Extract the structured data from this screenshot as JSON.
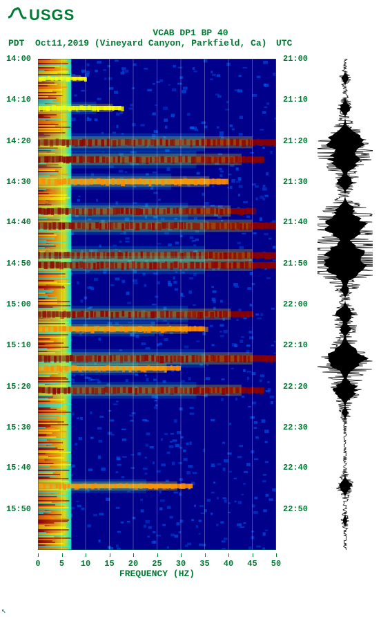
{
  "logo": {
    "org": "USGS",
    "color": "#007a33"
  },
  "header": {
    "title1": "VCAB DP1 BP 40",
    "tz_left": "PDT",
    "date_location": "Oct11,2019 (Vineyard Canyon, Parkfield, Ca)",
    "tz_right": "UTC"
  },
  "spectrogram": {
    "type": "heatmap",
    "x_axis": {
      "label": "FREQUENCY (HZ)",
      "min": 0,
      "max": 50,
      "ticks": [
        0,
        5,
        10,
        15,
        20,
        25,
        30,
        35,
        40,
        45,
        50
      ],
      "label_fontsize": 13,
      "tick_fontsize": 12
    },
    "y_axis_left": {
      "label_tz": "PDT",
      "ticks": [
        "14:00",
        "14:10",
        "14:20",
        "14:30",
        "14:40",
        "14:50",
        "15:00",
        "15:10",
        "15:20",
        "15:30",
        "15:40",
        "15:50"
      ],
      "tick_positions_pct": [
        0,
        8.3,
        16.7,
        25,
        33.3,
        41.7,
        50,
        58.3,
        66.7,
        75,
        83.3,
        91.7
      ]
    },
    "y_axis_right": {
      "label_tz": "UTC",
      "ticks": [
        "21:00",
        "21:10",
        "21:20",
        "21:30",
        "21:40",
        "21:50",
        "22:00",
        "22:10",
        "22:20",
        "22:30",
        "22:40",
        "22:50"
      ],
      "tick_positions_pct": [
        0,
        8.3,
        16.7,
        25,
        33.3,
        41.7,
        50,
        58.3,
        66.7,
        75,
        83.3,
        91.7
      ]
    },
    "colormap": {
      "low": "#00008b",
      "mid_low": "#0066ff",
      "mid": "#00ffff",
      "mid_high": "#ffff00",
      "high": "#ff8c00",
      "peak": "#8b0000"
    },
    "grid_color": "#ffffff",
    "background_color": "#00008b",
    "event_bands": [
      {
        "t_pct": 4,
        "intensity": 0.3,
        "width_pct": 20
      },
      {
        "t_pct": 10,
        "intensity": 0.5,
        "width_pct": 35
      },
      {
        "t_pct": 17,
        "intensity": 0.95,
        "width_pct": 100
      },
      {
        "t_pct": 20.5,
        "intensity": 0.9,
        "width_pct": 95
      },
      {
        "t_pct": 25,
        "intensity": 0.8,
        "width_pct": 80
      },
      {
        "t_pct": 31,
        "intensity": 0.85,
        "width_pct": 90
      },
      {
        "t_pct": 34,
        "intensity": 0.98,
        "width_pct": 100
      },
      {
        "t_pct": 40,
        "intensity": 0.98,
        "width_pct": 100
      },
      {
        "t_pct": 42,
        "intensity": 0.95,
        "width_pct": 100
      },
      {
        "t_pct": 52,
        "intensity": 0.85,
        "width_pct": 90
      },
      {
        "t_pct": 55,
        "intensity": 0.7,
        "width_pct": 70
      },
      {
        "t_pct": 61,
        "intensity": 0.98,
        "width_pct": 100
      },
      {
        "t_pct": 63,
        "intensity": 0.6,
        "width_pct": 60
      },
      {
        "t_pct": 67.5,
        "intensity": 0.85,
        "width_pct": 95
      },
      {
        "t_pct": 87,
        "intensity": 0.6,
        "width_pct": 65
      }
    ],
    "low_freq_column": {
      "width_pct": 14,
      "color_stops": [
        "#8b0000",
        "#ff8c00",
        "#ffff00"
      ]
    }
  },
  "waveform": {
    "type": "seismogram",
    "color": "#000000",
    "background": "#ffffff",
    "baseline_width": 2,
    "events": [
      {
        "t_pct": 4,
        "amp": 0.15
      },
      {
        "t_pct": 10,
        "amp": 0.25
      },
      {
        "t_pct": 17,
        "amp": 0.85
      },
      {
        "t_pct": 20.5,
        "amp": 0.7
      },
      {
        "t_pct": 25,
        "amp": 0.35
      },
      {
        "t_pct": 31,
        "amp": 0.45
      },
      {
        "t_pct": 34,
        "amp": 0.95
      },
      {
        "t_pct": 40,
        "amp": 0.9
      },
      {
        "t_pct": 42,
        "amp": 0.98
      },
      {
        "t_pct": 47,
        "amp": 0.2
      },
      {
        "t_pct": 52,
        "amp": 0.4
      },
      {
        "t_pct": 55,
        "amp": 0.25
      },
      {
        "t_pct": 61,
        "amp": 0.9
      },
      {
        "t_pct": 63,
        "amp": 0.3
      },
      {
        "t_pct": 67.5,
        "amp": 0.55
      },
      {
        "t_pct": 72,
        "amp": 0.15
      },
      {
        "t_pct": 87,
        "amp": 0.3
      },
      {
        "t_pct": 94,
        "amp": 0.1
      }
    ]
  },
  "text_color": "#007a33"
}
